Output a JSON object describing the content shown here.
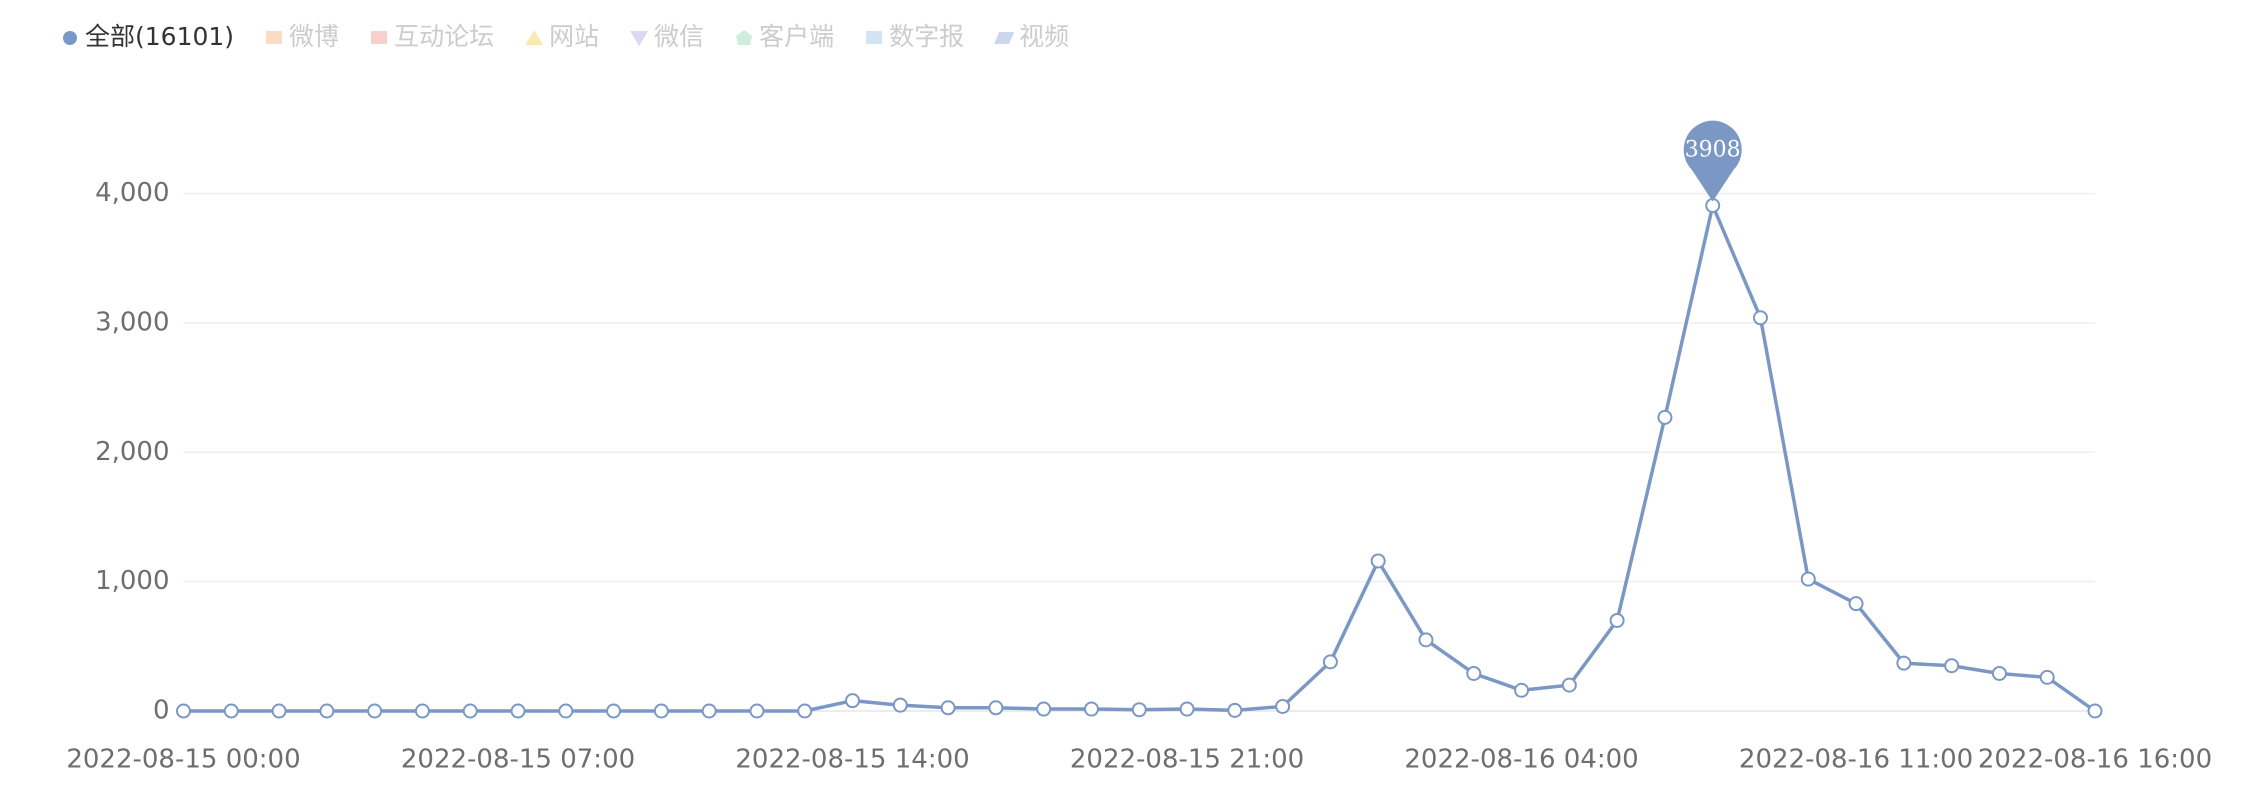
{
  "chart_data": {
    "type": "line",
    "categories": [
      "2022-08-15 00:00",
      null,
      null,
      null,
      null,
      null,
      null,
      "2022-08-15 07:00",
      null,
      null,
      null,
      null,
      null,
      null,
      "2022-08-15 14:00",
      null,
      null,
      null,
      null,
      null,
      null,
      "2022-08-15 21:00",
      null,
      null,
      null,
      null,
      null,
      null,
      "2022-08-16 04:00",
      null,
      null,
      null,
      null,
      null,
      null,
      "2022-08-16 11:00",
      null,
      null,
      null,
      null,
      "2022-08-16 16:00"
    ],
    "series": [
      {
        "name": "全部(16101)",
        "color": "#7b98c5",
        "shape": "circle",
        "values": [
          0,
          0,
          0,
          0,
          0,
          0,
          0,
          0,
          0,
          0,
          0,
          0,
          0,
          0,
          80,
          45,
          25,
          25,
          15,
          15,
          10,
          15,
          5,
          35,
          380,
          1160,
          550,
          290,
          160,
          200,
          700,
          2270,
          3908,
          3040,
          1020,
          830,
          370,
          350,
          290,
          260,
          0
        ]
      }
    ],
    "inactive_legend": [
      {
        "name": "微博",
        "color": "#f9dcc4",
        "shape": "rect"
      },
      {
        "name": "互动论坛",
        "color": "#f7cfcb",
        "shape": "rect"
      },
      {
        "name": "网站",
        "color": "#fbe9b5",
        "shape": "triangle"
      },
      {
        "name": "微信",
        "color": "#d9d9f0",
        "shape": "down-triangle"
      },
      {
        "name": "客户端",
        "color": "#cdeedc",
        "shape": "diamond"
      },
      {
        "name": "数字报",
        "color": "#d0e4f4",
        "shape": "rect"
      },
      {
        "name": "视频",
        "color": "#cbd6ef",
        "shape": "parallelogram"
      }
    ],
    "mark_point": "max",
    "ylim": [
      0,
      4000
    ],
    "yticks": [
      0,
      {
        "value": 1000,
        "label": "1,000"
      },
      {
        "value": 2000,
        "label": "2,000"
      },
      {
        "value": 3000,
        "label": "3,000"
      },
      {
        "value": 4000,
        "label": "4,000"
      }
    ],
    "grid": true
  }
}
